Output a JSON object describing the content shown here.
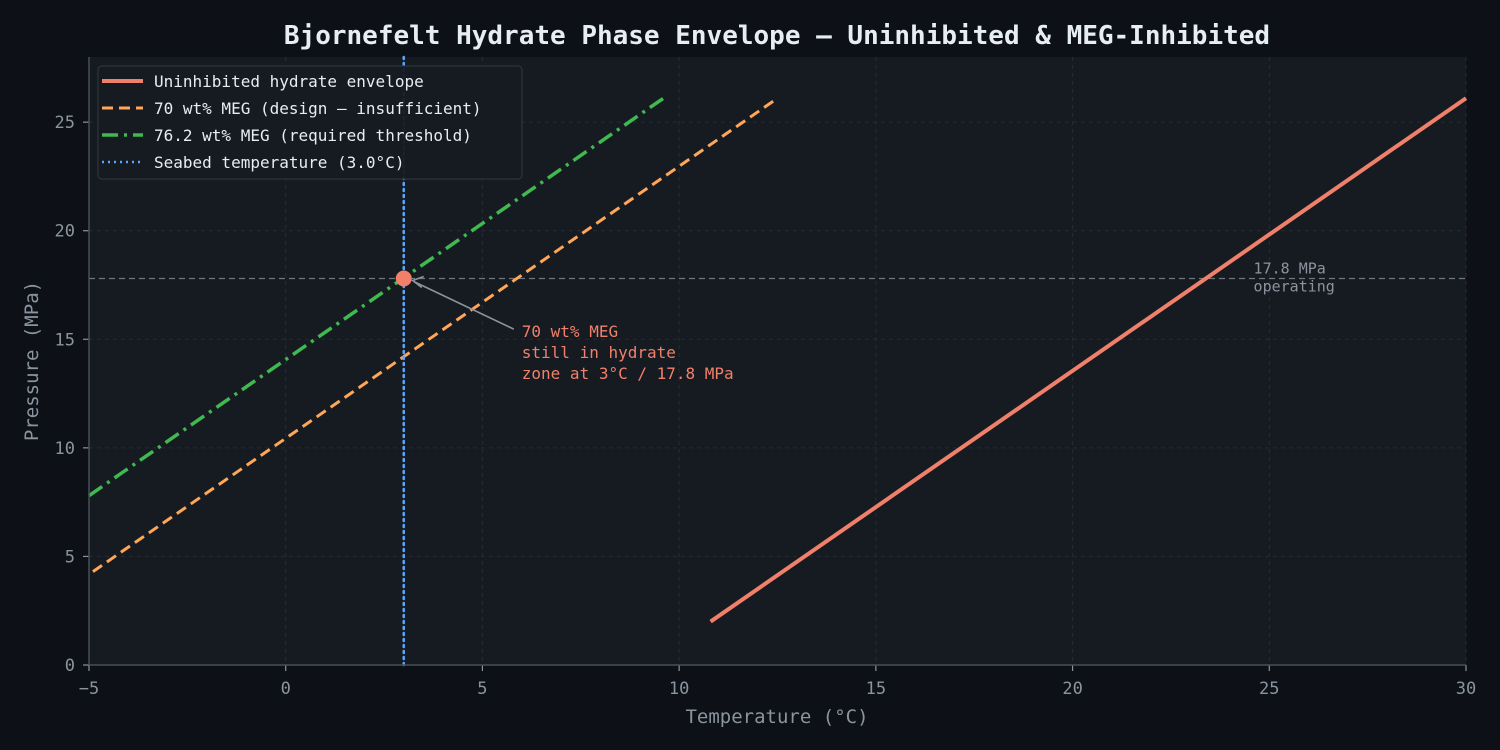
{
  "chart_data": {
    "type": "line",
    "title": "Bjornefelt Hydrate Phase Envelope — Uninhibited & MEG-Inhibited",
    "xlabel": "Temperature (°C)",
    "ylabel": "Pressure (MPa)",
    "xlim": [
      -5,
      30
    ],
    "ylim": [
      0,
      28
    ],
    "xticks": [
      -5,
      0,
      5,
      10,
      15,
      20,
      25,
      30
    ],
    "yticks": [
      0,
      5,
      10,
      15,
      20,
      25
    ],
    "grid": true,
    "legend_position": "top-left",
    "series": [
      {
        "name": "Uninhibited hydrate envelope",
        "style": "solid",
        "color": "#f0806a",
        "x": [
          10.8,
          30
        ],
        "y": [
          2.0,
          26.1
        ]
      },
      {
        "name": "70 wt% MEG (design — insufficient)",
        "style": "dashed",
        "color": "#ffa657",
        "x": [
          -4.9,
          12.5
        ],
        "y": [
          4.3,
          26.1
        ]
      },
      {
        "name": "76.2 wt% MEG (required threshold)",
        "style": "dashdot",
        "color": "#3fb950",
        "x": [
          -5,
          9.6
        ],
        "y": [
          7.8,
          26.1
        ]
      },
      {
        "name": "Seabed temperature (3.0°C)",
        "style": "dotted",
        "color": "#58a6ff",
        "x": [
          3.0,
          3.0
        ],
        "y": [
          0,
          28
        ]
      }
    ],
    "reference_line": {
      "y": 17.8,
      "label_lines": [
        "17.8 MPa",
        "operating"
      ],
      "label_x": 24.6
    },
    "operating_point": {
      "x": 3.0,
      "y": 17.8,
      "color": "#f0806a"
    },
    "annotation": {
      "lines": [
        "70 wt% MEG",
        "still in hydrate",
        "zone at 3°C / 17.8 MPa"
      ],
      "text_x": 6.0,
      "text_y": 15.1,
      "color": "#f0806a"
    }
  }
}
